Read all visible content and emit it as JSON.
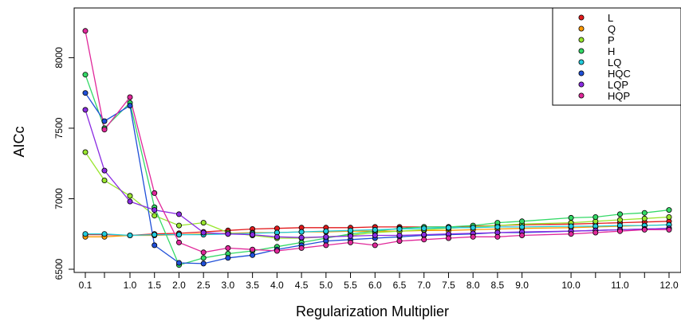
{
  "chart_data": {
    "type": "line",
    "xlabel": "Regularization Multiplier",
    "ylabel": "AICc",
    "x": [
      0.1,
      0.5,
      1.0,
      1.5,
      2.0,
      2.5,
      3.0,
      3.5,
      4.0,
      4.5,
      5.0,
      5.5,
      6.0,
      6.5,
      7.0,
      7.5,
      8.0,
      8.5,
      9.0,
      10.0,
      10.5,
      11.0,
      11.5,
      12.0
    ],
    "x_tick_labels": [
      "0.1",
      "1.0",
      "1.5",
      "2.0",
      "2.5",
      "3.0",
      "3.5",
      "4.0",
      "4.5",
      "5.0",
      "5.5",
      "6.0",
      "6.5",
      "7.0",
      "7.5",
      "8.0",
      "8.5",
      "9.0",
      "10.0",
      "11.0",
      "12.0"
    ],
    "y_ticks": [
      6500,
      7000,
      7500,
      8000
    ],
    "ylim": [
      6470,
      8280
    ],
    "grid": false,
    "legend_position": "top-right",
    "series": [
      {
        "name": "L",
        "color": "#e31a1c",
        "values": [
          6745,
          6745,
          6740,
          6750,
          6755,
          6765,
          6775,
          6785,
          6790,
          6795,
          6795,
          6795,
          6800,
          6800,
          6800,
          6800,
          6805,
          6810,
          6815,
          6820,
          6825,
          6830,
          6835,
          6840
        ]
      },
      {
        "name": "Q",
        "color": "#ff9900",
        "values": [
          6730,
          6730,
          6740,
          6740,
          6745,
          6750,
          6755,
          6760,
          6760,
          6765,
          6765,
          6770,
          6770,
          6770,
          6775,
          6775,
          6780,
          6785,
          6790,
          6795,
          6800,
          6805,
          6810,
          6815
        ]
      },
      {
        "name": "P",
        "color": "#99e62e",
        "values": [
          7330,
          7130,
          7020,
          6880,
          6810,
          6830,
          6760,
          6740,
          6720,
          6720,
          6730,
          6740,
          6760,
          6770,
          6780,
          6790,
          6800,
          6810,
          6820,
          6830,
          6840,
          6850,
          6860,
          6870
        ]
      },
      {
        "name": "H",
        "color": "#33d966",
        "values": [
          7880,
          7500,
          7680,
          6940,
          6530,
          6580,
          6610,
          6630,
          6660,
          6690,
          6720,
          6750,
          6770,
          6790,
          6800,
          6800,
          6810,
          6830,
          6840,
          6865,
          6870,
          6890,
          6900,
          6920
        ]
      },
      {
        "name": "LQ",
        "color": "#22ccdd",
        "values": [
          6750,
          6750,
          6740,
          6745,
          6745,
          6745,
          6750,
          6755,
          6760,
          6765,
          6770,
          6775,
          6780,
          6785,
          6790,
          6795,
          6795,
          6800,
          6800,
          6805,
          6805,
          6810,
          6810,
          6815
        ]
      },
      {
        "name": "HQC",
        "color": "#1f4fd8",
        "values": [
          7750,
          7550,
          7660,
          6670,
          6545,
          6540,
          6580,
          6600,
          6640,
          6670,
          6700,
          6710,
          6720,
          6730,
          6740,
          6745,
          6750,
          6760,
          6760,
          6770,
          6775,
          6780,
          6785,
          6790
        ]
      },
      {
        "name": "LQP",
        "color": "#8a2be2",
        "values": [
          7630,
          7200,
          6980,
          6920,
          6890,
          6760,
          6750,
          6745,
          6730,
          6725,
          6730,
          6735,
          6740,
          6740,
          6745,
          6750,
          6755,
          6760,
          6765,
          6770,
          6775,
          6780,
          6785,
          6790
        ]
      },
      {
        "name": "HQP",
        "color": "#e0289a",
        "values": [
          8190,
          7490,
          7720,
          7040,
          6690,
          6620,
          6650,
          6640,
          6630,
          6650,
          6670,
          6690,
          6670,
          6700,
          6710,
          6720,
          6730,
          6730,
          6740,
          6750,
          6760,
          6770,
          6780,
          6780
        ]
      }
    ]
  }
}
